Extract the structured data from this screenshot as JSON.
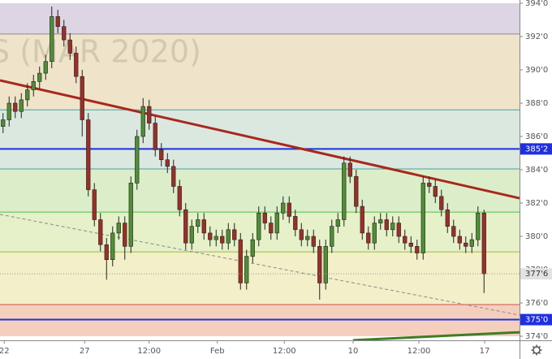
{
  "chart_data": {
    "type": "candlestick",
    "watermark": "S (MAR 2020)",
    "xlim": [
      -0.5,
      84.83
    ],
    "ylim": [
      374,
      394
    ],
    "yticks": [
      {
        "value": 374,
        "label": "374'0"
      },
      {
        "value": 376,
        "label": "376'0"
      },
      {
        "value": 378,
        "label": "378'0"
      },
      {
        "value": 380,
        "label": "380'0"
      },
      {
        "value": 382,
        "label": "382'0"
      },
      {
        "value": 384,
        "label": "384'0"
      },
      {
        "value": 386,
        "label": "386'0"
      },
      {
        "value": 388,
        "label": "388'0"
      },
      {
        "value": 390,
        "label": "390'0"
      },
      {
        "value": 392,
        "label": "392'0"
      },
      {
        "value": 394,
        "label": "394'0"
      }
    ],
    "xticks": [
      {
        "value": 0.2,
        "label": "22"
      },
      {
        "value": 13.4,
        "label": "27"
      },
      {
        "value": 24.0,
        "label": "12:00"
      },
      {
        "value": 35.2,
        "label": "Feb"
      },
      {
        "value": 46.2,
        "label": "12:00"
      },
      {
        "value": 57.5,
        "label": "10"
      },
      {
        "value": 68.3,
        "label": "12:00"
      },
      {
        "value": 79.1,
        "label": "17"
      }
    ],
    "up_color": "#4f8f35",
    "down_color": "#9c2f28",
    "open": [
      386.6,
      387.0,
      388.0,
      387.5,
      388.2,
      388.8,
      389.3,
      389.8,
      390.5,
      393.2,
      392.6,
      391.8,
      391.0,
      389.6,
      387.0,
      382.8,
      381.0,
      379.5,
      378.6,
      380.2,
      380.8,
      379.4,
      383.2,
      386.0,
      387.8,
      386.8,
      385.2,
      384.6,
      384.2,
      383.0,
      381.6,
      379.6,
      380.6,
      381.0,
      380.2,
      379.8,
      380.0,
      379.6,
      380.4,
      379.8,
      377.2,
      378.8,
      379.8,
      381.4,
      380.8,
      380.2,
      381.4,
      382.0,
      381.2,
      380.4,
      379.8,
      380.0,
      379.4,
      377.2,
      379.4,
      380.6,
      381.0,
      384.4,
      383.6,
      381.8,
      380.2,
      379.6,
      380.8,
      381.0,
      380.4,
      380.8,
      380.0,
      379.6,
      379.4,
      379.0,
      383.2,
      383.0,
      382.4,
      381.6,
      380.6,
      380.0,
      379.6,
      379.4,
      379.8,
      381.4
    ],
    "high": [
      387.4,
      388.4,
      388.4,
      388.6,
      389.2,
      389.7,
      390.2,
      390.9,
      393.8,
      393.6,
      393.0,
      392.2,
      391.4,
      390.0,
      387.4,
      383.2,
      381.4,
      379.9,
      380.6,
      381.2,
      381.2,
      383.6,
      386.4,
      388.3,
      388.2,
      387.2,
      385.6,
      385.0,
      384.6,
      383.4,
      382.0,
      381.0,
      381.4,
      381.4,
      380.6,
      380.4,
      380.4,
      380.8,
      380.8,
      380.2,
      379.2,
      380.2,
      381.8,
      381.8,
      381.2,
      381.8,
      382.4,
      382.4,
      381.6,
      380.8,
      380.4,
      380.4,
      379.8,
      379.8,
      381.0,
      381.4,
      384.8,
      384.8,
      384.0,
      382.2,
      380.6,
      381.2,
      381.4,
      381.4,
      381.2,
      381.2,
      380.4,
      380.0,
      379.8,
      383.6,
      383.6,
      383.4,
      382.8,
      382.0,
      381.0,
      380.4,
      380.0,
      380.2,
      381.8,
      381.6
    ],
    "low": [
      386.2,
      386.6,
      387.1,
      387.1,
      387.8,
      388.4,
      388.9,
      389.4,
      390.1,
      392.2,
      391.4,
      390.6,
      389.2,
      386.0,
      382.4,
      380.6,
      379.1,
      377.4,
      378.2,
      379.8,
      378.6,
      379.0,
      382.8,
      385.6,
      386.4,
      384.8,
      384.2,
      383.8,
      382.6,
      381.2,
      379.2,
      379.2,
      380.2,
      379.8,
      379.4,
      379.4,
      379.2,
      379.2,
      379.4,
      376.8,
      376.8,
      378.4,
      379.4,
      380.4,
      379.8,
      379.8,
      381.0,
      380.8,
      380.0,
      379.4,
      379.4,
      379.0,
      376.2,
      376.8,
      379.0,
      380.2,
      380.6,
      383.2,
      381.4,
      379.8,
      379.2,
      379.2,
      380.4,
      380.0,
      380.0,
      379.6,
      379.2,
      379.0,
      378.6,
      378.6,
      382.6,
      382.0,
      381.2,
      380.2,
      379.6,
      379.2,
      379.0,
      379.0,
      379.4,
      376.6
    ],
    "close": [
      387.0,
      388.0,
      387.5,
      388.2,
      388.8,
      389.3,
      389.8,
      390.5,
      393.2,
      392.6,
      391.8,
      391.0,
      389.6,
      387.0,
      382.8,
      381.0,
      379.5,
      378.6,
      380.2,
      380.8,
      379.4,
      383.2,
      386.0,
      387.8,
      386.8,
      385.2,
      384.6,
      384.2,
      383.0,
      381.6,
      379.6,
      380.6,
      381.0,
      380.2,
      379.8,
      380.0,
      379.6,
      380.4,
      379.8,
      377.2,
      378.8,
      379.8,
      381.4,
      380.8,
      380.2,
      381.4,
      382.0,
      381.2,
      380.4,
      379.8,
      380.0,
      379.4,
      377.2,
      379.4,
      380.6,
      381.0,
      384.4,
      383.6,
      381.8,
      380.2,
      379.6,
      380.8,
      381.0,
      380.4,
      380.8,
      380.0,
      379.6,
      379.4,
      379.0,
      383.2,
      383.0,
      382.4,
      381.6,
      380.6,
      380.0,
      379.6,
      379.4,
      379.8,
      381.4,
      377.75
    ],
    "zones": [
      {
        "from": 392.15,
        "to": 394,
        "color": "#ddd5e3"
      },
      {
        "from": 387.6,
        "to": 392.15,
        "color": "#efe4c9"
      },
      {
        "from": 384.05,
        "to": 387.6,
        "color": "#dbe8df"
      },
      {
        "from": 381.46,
        "to": 384.05,
        "color": "#dcedca"
      },
      {
        "from": 379.07,
        "to": 381.46,
        "color": "#e6f0c9"
      },
      {
        "from": 375.9,
        "to": 379.07,
        "color": "#f2efc9"
      },
      {
        "from": 374,
        "to": 375.9,
        "color": "#f4cfbd"
      }
    ],
    "levels": [
      {
        "value": 392.15,
        "color": "#8a8aa0",
        "width": 1
      },
      {
        "value": 387.6,
        "color": "#4aa0a8",
        "width": 1
      },
      {
        "value": 385.25,
        "color": "#1f2fe0",
        "width": 2
      },
      {
        "value": 384.05,
        "color": "#4aa0a8",
        "width": 1
      },
      {
        "value": 381.46,
        "color": "#4cbf4c",
        "width": 1
      },
      {
        "value": 379.07,
        "color": "#9cbf3c",
        "width": 1
      },
      {
        "value": 375.9,
        "color": "#d0504a",
        "width": 1
      },
      {
        "value": 375,
        "color": "#1f2fe0",
        "width": 2
      }
    ],
    "trendlines": [
      {
        "x": [
          -0.5,
          84.83
        ],
        "y": [
          389.37,
          382.29
        ],
        "color": "#a8281c",
        "width": 3,
        "dash": false
      },
      {
        "x": [
          -0.5,
          84.83
        ],
        "y": [
          381.32,
          375.27
        ],
        "color": "#8a8a8a",
        "width": 1,
        "dash": true
      },
      {
        "x": [
          57.5,
          84.83
        ],
        "y": [
          373.76,
          374.24
        ],
        "color": "#3f7d24",
        "width": 3,
        "dash": false
      }
    ],
    "price_labels": [
      {
        "value": 385.25,
        "label": "385'2",
        "color": "#1f2fe0",
        "text_color": "#ffffff"
      },
      {
        "value": 377.75,
        "label": "377'6",
        "color": "#e2e2e2",
        "text_color": "#333333"
      },
      {
        "value": 375,
        "label": "375'0",
        "color": "#1f2fe0",
        "text_color": "#ffffff"
      }
    ]
  }
}
